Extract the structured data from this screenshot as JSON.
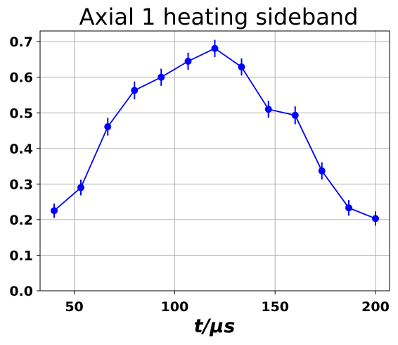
{
  "chart_data": {
    "type": "line",
    "title": "Axial 1 heating sideband",
    "xlabel": "t/μs",
    "ylabel": "",
    "xlim": [
      33,
      207
    ],
    "ylim": [
      0.0,
      0.73
    ],
    "xticks": [
      50,
      100,
      150,
      200
    ],
    "xtick_labels": [
      "50",
      "100",
      "150",
      "200"
    ],
    "yticks": [
      0.0,
      0.1,
      0.2,
      0.3,
      0.4,
      0.5,
      0.6,
      0.7
    ],
    "ytick_labels": [
      "0.0",
      "0.1",
      "0.2",
      "0.3",
      "0.4",
      "0.5",
      "0.6",
      "0.7"
    ],
    "grid": true,
    "color": "#0000ff",
    "series": [
      {
        "x": [
          40,
          53.3,
          66.7,
          80,
          93.3,
          106.7,
          120,
          133.3,
          146.7,
          160,
          173.3,
          186.7,
          200
        ],
        "y": [
          0.225,
          0.29,
          0.461,
          0.563,
          0.6,
          0.645,
          0.681,
          0.629,
          0.51,
          0.493,
          0.337,
          0.233,
          0.203
        ],
        "yerr": [
          0.02,
          0.022,
          0.025,
          0.025,
          0.024,
          0.024,
          0.024,
          0.024,
          0.024,
          0.025,
          0.024,
          0.022,
          0.02
        ]
      }
    ]
  }
}
